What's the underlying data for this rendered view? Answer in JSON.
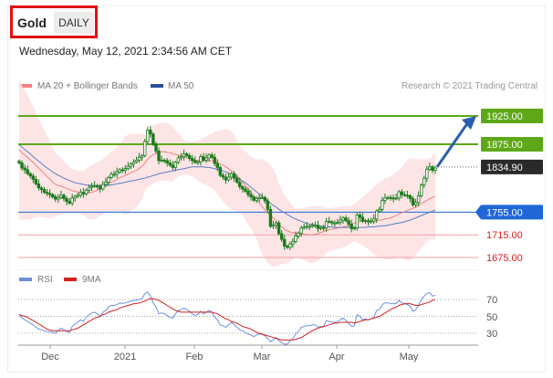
{
  "header": {
    "symbol": "Gold",
    "period": "DAILY",
    "datetime": "Wednesday, May 12, 2021 2:34:56 AM CET"
  },
  "legend": {
    "items": [
      {
        "label": "MA 20 + Bollinger Bands",
        "color": "#f08080"
      },
      {
        "label": "MA 50",
        "color": "#2a4f9a"
      }
    ],
    "credit": "Research © 2021 Trading Central"
  },
  "price_levels": [
    {
      "value": 1925,
      "label": "1925.00",
      "style": "green",
      "color": "#5ea818"
    },
    {
      "value": 1875,
      "label": "1875.00",
      "style": "green",
      "color": "#5ea818"
    },
    {
      "value": 1834.9,
      "label": "1834.90",
      "style": "current",
      "color": "#2a2a2a"
    },
    {
      "value": 1755,
      "label": "1755.00",
      "style": "blue",
      "color": "#1f66d8"
    },
    {
      "value": 1715,
      "label": "1715.00",
      "style": "red",
      "color": "#d62020"
    },
    {
      "value": 1675,
      "label": "1675.00",
      "style": "red",
      "color": "#d62020"
    }
  ],
  "indicator_legend": [
    {
      "label": "RSI",
      "color": "#6f8ee0"
    },
    {
      "label": "9MA",
      "color": "#d62020"
    }
  ],
  "rsi_levels": [
    "70",
    "50",
    "30"
  ],
  "x_axis_labels": [
    "Dec",
    "2021",
    "Feb",
    "Mar",
    "Apr",
    "May"
  ],
  "colors": {
    "candle": "#1a7a1a",
    "bollinger_fill": "#fde0e0",
    "ma20": "#f08080",
    "ma50": "#5a7cc8",
    "arrow": "#2a5fb0"
  },
  "chart_data": {
    "type": "candlestick",
    "title": "Gold",
    "ylim": [
      1660,
      1945
    ],
    "x_labels": [
      "Dec",
      "2021",
      "Feb",
      "Mar",
      "Apr",
      "May"
    ],
    "close": [
      1842,
      1833,
      1830,
      1823,
      1819,
      1813,
      1805,
      1798,
      1795,
      1790,
      1788,
      1786,
      1782,
      1778,
      1781,
      1785,
      1779,
      1774,
      1771,
      1780,
      1783,
      1785,
      1790,
      1787,
      1794,
      1799,
      1801,
      1802,
      1800,
      1796,
      1804,
      1808,
      1816,
      1822,
      1822,
      1826,
      1830,
      1829,
      1832,
      1836,
      1840,
      1844,
      1847,
      1852,
      1855,
      1880,
      1900,
      1893,
      1875,
      1863,
      1846,
      1847,
      1846,
      1842,
      1838,
      1834,
      1843,
      1851,
      1853,
      1858,
      1855,
      1850,
      1846,
      1843,
      1844,
      1853,
      1847,
      1851,
      1856,
      1852,
      1841,
      1834,
      1820,
      1817,
      1812,
      1817,
      1823,
      1815,
      1808,
      1800,
      1796,
      1792,
      1786,
      1782,
      1776,
      1779,
      1781,
      1781,
      1775,
      1760,
      1730,
      1732,
      1736,
      1717,
      1707,
      1695,
      1693,
      1699,
      1703,
      1713,
      1718,
      1727,
      1729,
      1730,
      1730,
      1732,
      1732,
      1726,
      1728,
      1727,
      1739,
      1738,
      1736,
      1736,
      1737,
      1741,
      1745,
      1740,
      1734,
      1726,
      1727,
      1750,
      1746,
      1739,
      1740,
      1738,
      1739,
      1743,
      1757,
      1760,
      1776,
      1780,
      1781,
      1780,
      1779,
      1780,
      1791,
      1786,
      1785,
      1784,
      1779,
      1768,
      1772,
      1784,
      1803,
      1815,
      1831,
      1835,
      1829,
      1833
    ],
    "ma20": [
      1866,
      1860,
      1856,
      1852,
      1847,
      1843,
      1838,
      1833,
      1828,
      1823,
      1818,
      1813,
      1808,
      1804,
      1802,
      1801,
      1799,
      1797,
      1795,
      1793,
      1792,
      1791,
      1790,
      1789,
      1789,
      1789,
      1790,
      1792,
      1794,
      1797,
      1800,
      1803,
      1806,
      1808,
      1810,
      1813,
      1816,
      1818,
      1820,
      1822,
      1825,
      1827,
      1829,
      1832,
      1836,
      1842,
      1848,
      1853,
      1857,
      1859,
      1861,
      1862,
      1862,
      1861,
      1860,
      1858,
      1857,
      1856,
      1854,
      1852,
      1851,
      1850,
      1849,
      1847,
      1846,
      1846,
      1846,
      1846,
      1846,
      1846,
      1845,
      1843,
      1840,
      1838,
      1835,
      1832,
      1828,
      1824,
      1819,
      1814,
      1808,
      1802,
      1796,
      1790,
      1784,
      1778,
      1771,
      1765,
      1759,
      1754,
      1749,
      1745,
      1740,
      1734,
      1729,
      1725,
      1722,
      1720,
      1719,
      1718,
      1718,
      1717,
      1716,
      1716,
      1715,
      1715,
      1716,
      1717,
      1719,
      1721,
      1723,
      1724,
      1725,
      1726,
      1727,
      1728,
      1729,
      1730,
      1732,
      1734,
      1736,
      1737,
      1738,
      1739,
      1739,
      1740,
      1740,
      1740,
      1740,
      1741,
      1742,
      1743,
      1744,
      1745,
      1747,
      1749,
      1752,
      1754,
      1756,
      1758,
      1760,
      1762,
      1764,
      1767,
      1770,
      1773,
      1776,
      1779,
      1781,
      1783
    ],
    "ma50": [
      1874,
      1870,
      1866,
      1862,
      1858,
      1853,
      1849,
      1845,
      1841,
      1837,
      1833,
      1830,
      1826,
      1823,
      1820,
      1818,
      1815,
      1813,
      1811,
      1809,
      1807,
      1806,
      1805,
      1804,
      1803,
      1803,
      1802,
      1802,
      1802,
      1802,
      1802,
      1802,
      1803,
      1803,
      1804,
      1805,
      1806,
      1807,
      1808,
      1809,
      1810,
      1811,
      1812,
      1813,
      1814,
      1815,
      1817,
      1818,
      1820,
      1821,
      1823,
      1824,
      1825,
      1826,
      1827,
      1828,
      1829,
      1830,
      1831,
      1832,
      1833,
      1834,
      1835,
      1835,
      1835,
      1835,
      1835,
      1834,
      1834,
      1833,
      1832,
      1831,
      1830,
      1828,
      1826,
      1824,
      1822,
      1819,
      1816,
      1813,
      1810,
      1807,
      1803,
      1799,
      1795,
      1791,
      1787,
      1783,
      1779,
      1775,
      1771,
      1767,
      1764,
      1760,
      1757,
      1754,
      1751,
      1748,
      1745,
      1743,
      1741,
      1739,
      1737,
      1735,
      1734,
      1733,
      1732,
      1731,
      1730,
      1730,
      1729,
      1729,
      1729,
      1728,
      1728,
      1728,
      1728,
      1728,
      1728,
      1728,
      1728,
      1728,
      1728,
      1728,
      1728,
      1729,
      1729,
      1729,
      1730,
      1730,
      1731,
      1731,
      1732,
      1733,
      1734,
      1735,
      1736,
      1737,
      1738,
      1740,
      1741,
      1743,
      1745,
      1747,
      1749,
      1751,
      1753,
      1755,
      1757,
      1759
    ],
    "rsi": [
      52,
      48,
      46,
      44,
      42,
      40,
      37,
      35,
      34,
      33,
      32,
      32,
      31,
      30,
      33,
      36,
      34,
      32,
      31,
      38,
      41,
      43,
      46,
      44,
      49,
      52,
      54,
      55,
      53,
      50,
      55,
      57,
      61,
      63,
      63,
      64,
      66,
      65,
      66,
      67,
      68,
      69,
      69,
      70,
      71,
      77,
      79,
      74,
      66,
      61,
      53,
      54,
      53,
      51,
      49,
      48,
      53,
      57,
      58,
      60,
      58,
      56,
      53,
      51,
      52,
      56,
      53,
      55,
      57,
      55,
      49,
      46,
      40,
      39,
      37,
      40,
      43,
      40,
      37,
      34,
      33,
      31,
      29,
      28,
      26,
      28,
      29,
      29,
      27,
      24,
      20,
      22,
      25,
      21,
      19,
      17,
      17,
      21,
      24,
      29,
      32,
      37,
      38,
      39,
      39,
      40,
      40,
      37,
      38,
      38,
      45,
      44,
      43,
      43,
      44,
      46,
      48,
      45,
      42,
      38,
      39,
      52,
      50,
      46,
      47,
      46,
      47,
      49,
      57,
      58,
      64,
      66,
      66,
      65,
      65,
      65,
      69,
      66,
      65,
      64,
      62,
      56,
      58,
      63,
      70,
      74,
      77,
      78,
      74,
      75
    ],
    "rsi_ma": [
      52,
      51,
      50,
      49,
      47,
      45,
      43,
      41,
      39,
      37,
      35,
      34,
      33,
      33,
      33,
      33,
      33,
      33,
      33,
      34,
      35,
      36,
      38,
      40,
      42,
      44,
      46,
      48,
      49,
      50,
      52,
      53,
      55,
      56,
      57,
      58,
      60,
      61,
      62,
      63,
      64,
      65,
      65,
      66,
      67,
      68,
      70,
      71,
      71,
      70,
      69,
      67,
      65,
      63,
      61,
      59,
      57,
      56,
      55,
      55,
      55,
      55,
      55,
      55,
      55,
      55,
      55,
      55,
      55,
      55,
      54,
      53,
      51,
      49,
      47,
      46,
      44,
      43,
      42,
      40,
      38,
      37,
      36,
      35,
      33,
      31,
      30,
      29,
      28,
      27,
      26,
      25,
      24,
      23,
      22,
      22,
      22,
      22,
      22,
      23,
      24,
      25,
      27,
      29,
      31,
      33,
      35,
      36,
      37,
      38,
      39,
      40,
      41,
      42,
      42,
      43,
      43,
      43,
      43,
      43,
      42,
      43,
      44,
      45,
      46,
      46,
      47,
      48,
      49,
      50,
      52,
      54,
      56,
      58,
      60,
      61,
      63,
      64,
      65,
      65,
      65,
      64,
      63,
      63,
      64,
      65,
      66,
      67,
      69,
      70
    ],
    "levels": [
      1925,
      1875,
      1834.9,
      1755,
      1715,
      1675
    ],
    "projection": {
      "from": 1834.9,
      "to": 1925
    }
  }
}
